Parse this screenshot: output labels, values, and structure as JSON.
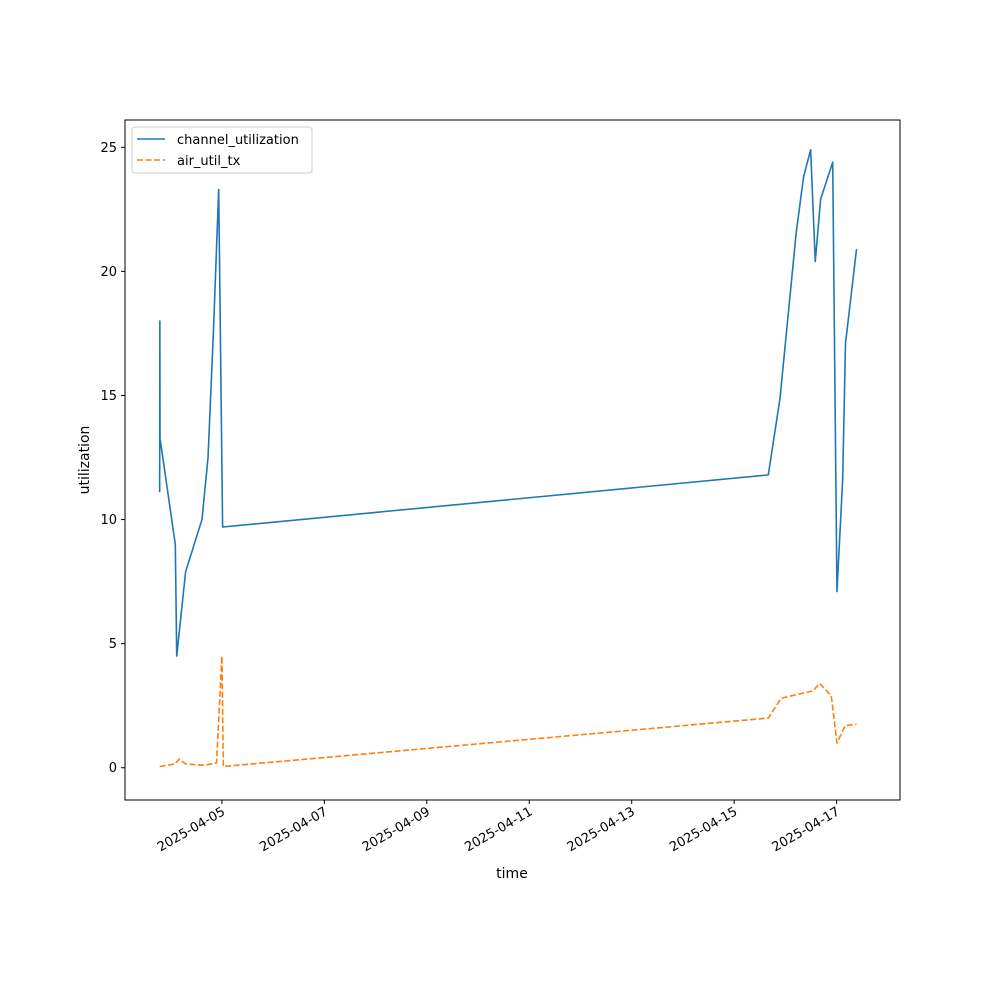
{
  "chart_data": {
    "type": "line",
    "title": "",
    "xlabel": "time",
    "ylabel": "utilization",
    "x_tick_labels": [
      "2025-04-05",
      "2025-04-07",
      "2025-04-09",
      "2025-04-11",
      "2025-04-13",
      "2025-04-15",
      "2025-04-17"
    ],
    "y_ticks": [
      0,
      5,
      10,
      15,
      20,
      25
    ],
    "xlim": [
      "2025-04-03 02:36",
      "2025-04-18 05:42"
    ],
    "ylim": [
      -1.3,
      26.1
    ],
    "grid": false,
    "legend_position": "top-left",
    "series": [
      {
        "name": "channel_utilization",
        "color": "#1f77b4",
        "style": "solid",
        "points": [
          [
            "2025-04-03 18:50",
            11.1
          ],
          [
            "2025-04-03 18:56",
            18.0
          ],
          [
            "2025-04-03 19:00",
            13.0
          ],
          [
            "2025-04-03 19:08",
            13.2
          ],
          [
            "2025-04-04 02:10",
            9.0
          ],
          [
            "2025-04-04 02:50",
            4.5
          ],
          [
            "2025-04-04 07:00",
            7.9
          ],
          [
            "2025-04-04 14:40",
            10.0
          ],
          [
            "2025-04-04 17:30",
            12.5
          ],
          [
            "2025-04-04 20:00",
            17.5
          ],
          [
            "2025-04-04 22:30",
            23.3
          ],
          [
            "2025-04-05 00:20",
            9.7
          ],
          [
            "2025-04-15 16:00",
            11.8
          ],
          [
            "2025-04-15 21:30",
            14.9
          ],
          [
            "2025-04-16 05:00",
            21.5
          ],
          [
            "2025-04-16 08:30",
            23.8
          ],
          [
            "2025-04-16 11:50",
            24.9
          ],
          [
            "2025-04-16 14:00",
            20.4
          ],
          [
            "2025-04-16 16:30",
            22.9
          ],
          [
            "2025-04-16 22:10",
            24.4
          ],
          [
            "2025-04-17 00:10",
            7.1
          ],
          [
            "2025-04-17 02:50",
            11.6
          ],
          [
            "2025-04-17 04:10",
            17.1
          ],
          [
            "2025-04-17 09:20",
            20.9
          ]
        ]
      },
      {
        "name": "air_util_tx",
        "color": "#ff7f0e",
        "style": "dashed",
        "points": [
          [
            "2025-04-03 18:50",
            0.05
          ],
          [
            "2025-04-04 02:00",
            0.15
          ],
          [
            "2025-04-04 04:00",
            0.35
          ],
          [
            "2025-04-04 07:00",
            0.15
          ],
          [
            "2025-04-04 16:00",
            0.1
          ],
          [
            "2025-04-04 21:30",
            0.2
          ],
          [
            "2025-04-05 00:00",
            4.5
          ],
          [
            "2025-04-05 00:40",
            0.05
          ],
          [
            "2025-04-15 16:00",
            2.0
          ],
          [
            "2025-04-15 22:00",
            2.8
          ],
          [
            "2025-04-16 13:00",
            3.1
          ],
          [
            "2025-04-16 16:00",
            3.4
          ],
          [
            "2025-04-16 21:30",
            2.9
          ],
          [
            "2025-04-17 00:10",
            1.0
          ],
          [
            "2025-04-17 04:00",
            1.7
          ],
          [
            "2025-04-17 09:20",
            1.75
          ]
        ]
      }
    ]
  }
}
